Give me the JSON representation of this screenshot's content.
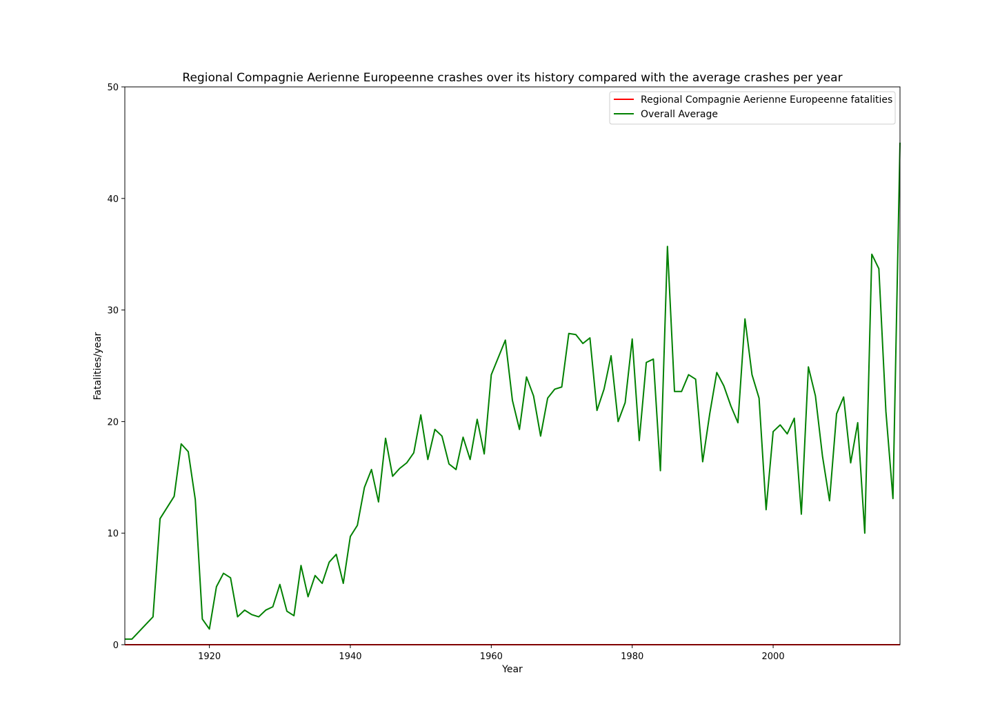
{
  "chart_data": {
    "type": "line",
    "title": "Regional Compagnie Aerienne Europeenne crashes over its history compared with the average crashes per year",
    "xlabel": "Year",
    "ylabel": "Fatalities/year",
    "xlim": [
      1908,
      2018
    ],
    "ylim": [
      0,
      50
    ],
    "xticks": [
      1920,
      1940,
      1960,
      1980,
      2000
    ],
    "yticks": [
      0,
      10,
      20,
      30,
      40,
      50
    ],
    "grid": false,
    "legend_position": "top-right",
    "series": [
      {
        "name": "Regional Compagnie Aerienne Europeenne fatalities",
        "color": "#ff0000",
        "x": [
          1908,
          2018
        ],
        "y": [
          0,
          0
        ]
      },
      {
        "name": "Overall Average",
        "color": "#008000",
        "x": [
          1908,
          1909,
          1912,
          1913,
          1915,
          1916,
          1917,
          1918,
          1919,
          1920,
          1921,
          1922,
          1923,
          1924,
          1925,
          1926,
          1927,
          1928,
          1929,
          1930,
          1931,
          1932,
          1933,
          1934,
          1935,
          1936,
          1937,
          1938,
          1939,
          1940,
          1941,
          1942,
          1943,
          1944,
          1945,
          1946,
          1947,
          1948,
          1949,
          1950,
          1951,
          1952,
          1953,
          1954,
          1955,
          1956,
          1957,
          1958,
          1959,
          1960,
          1962,
          1963,
          1964,
          1965,
          1966,
          1967,
          1968,
          1969,
          1970,
          1971,
          1972,
          1973,
          1974,
          1975,
          1976,
          1977,
          1978,
          1979,
          1980,
          1981,
          1982,
          1983,
          1984,
          1985,
          1986,
          1987,
          1988,
          1989,
          1990,
          1991,
          1992,
          1993,
          1994,
          1995,
          1996,
          1997,
          1998,
          1999,
          2000,
          2001,
          2002,
          2003,
          2004,
          2005,
          2006,
          2007,
          2008,
          2009,
          2010,
          2011,
          2012,
          2013,
          2014,
          2015,
          2016,
          2017,
          2018
        ],
        "y": [
          0.5,
          0.5,
          2.5,
          11.3,
          13.3,
          18.0,
          17.3,
          13.0,
          2.3,
          1.4,
          5.2,
          6.4,
          6.0,
          2.5,
          3.1,
          2.7,
          2.5,
          3.1,
          3.4,
          5.4,
          3.0,
          2.6,
          7.1,
          4.3,
          6.2,
          5.5,
          7.4,
          8.1,
          5.5,
          9.7,
          10.7,
          14.1,
          15.7,
          12.8,
          18.5,
          15.1,
          15.8,
          16.3,
          17.2,
          20.6,
          16.6,
          19.3,
          18.7,
          16.2,
          15.7,
          18.6,
          16.6,
          20.2,
          17.1,
          24.2,
          27.3,
          21.9,
          19.3,
          24.0,
          22.3,
          18.7,
          22.1,
          22.9,
          23.1,
          27.9,
          27.8,
          27.0,
          27.5,
          21.0,
          22.9,
          25.9,
          20.0,
          21.7,
          27.4,
          18.3,
          25.3,
          25.6,
          15.6,
          35.7,
          22.7,
          22.7,
          24.2,
          23.8,
          16.4,
          20.7,
          24.4,
          23.2,
          21.4,
          19.9,
          29.2,
          24.2,
          22.1,
          12.1,
          19.1,
          19.7,
          18.9,
          20.3,
          11.7,
          24.9,
          22.3,
          16.9,
          12.9,
          20.7,
          22.2,
          16.3,
          19.9,
          10.0,
          35.0,
          33.7,
          20.9,
          13.1,
          45.0
        ]
      }
    ]
  }
}
